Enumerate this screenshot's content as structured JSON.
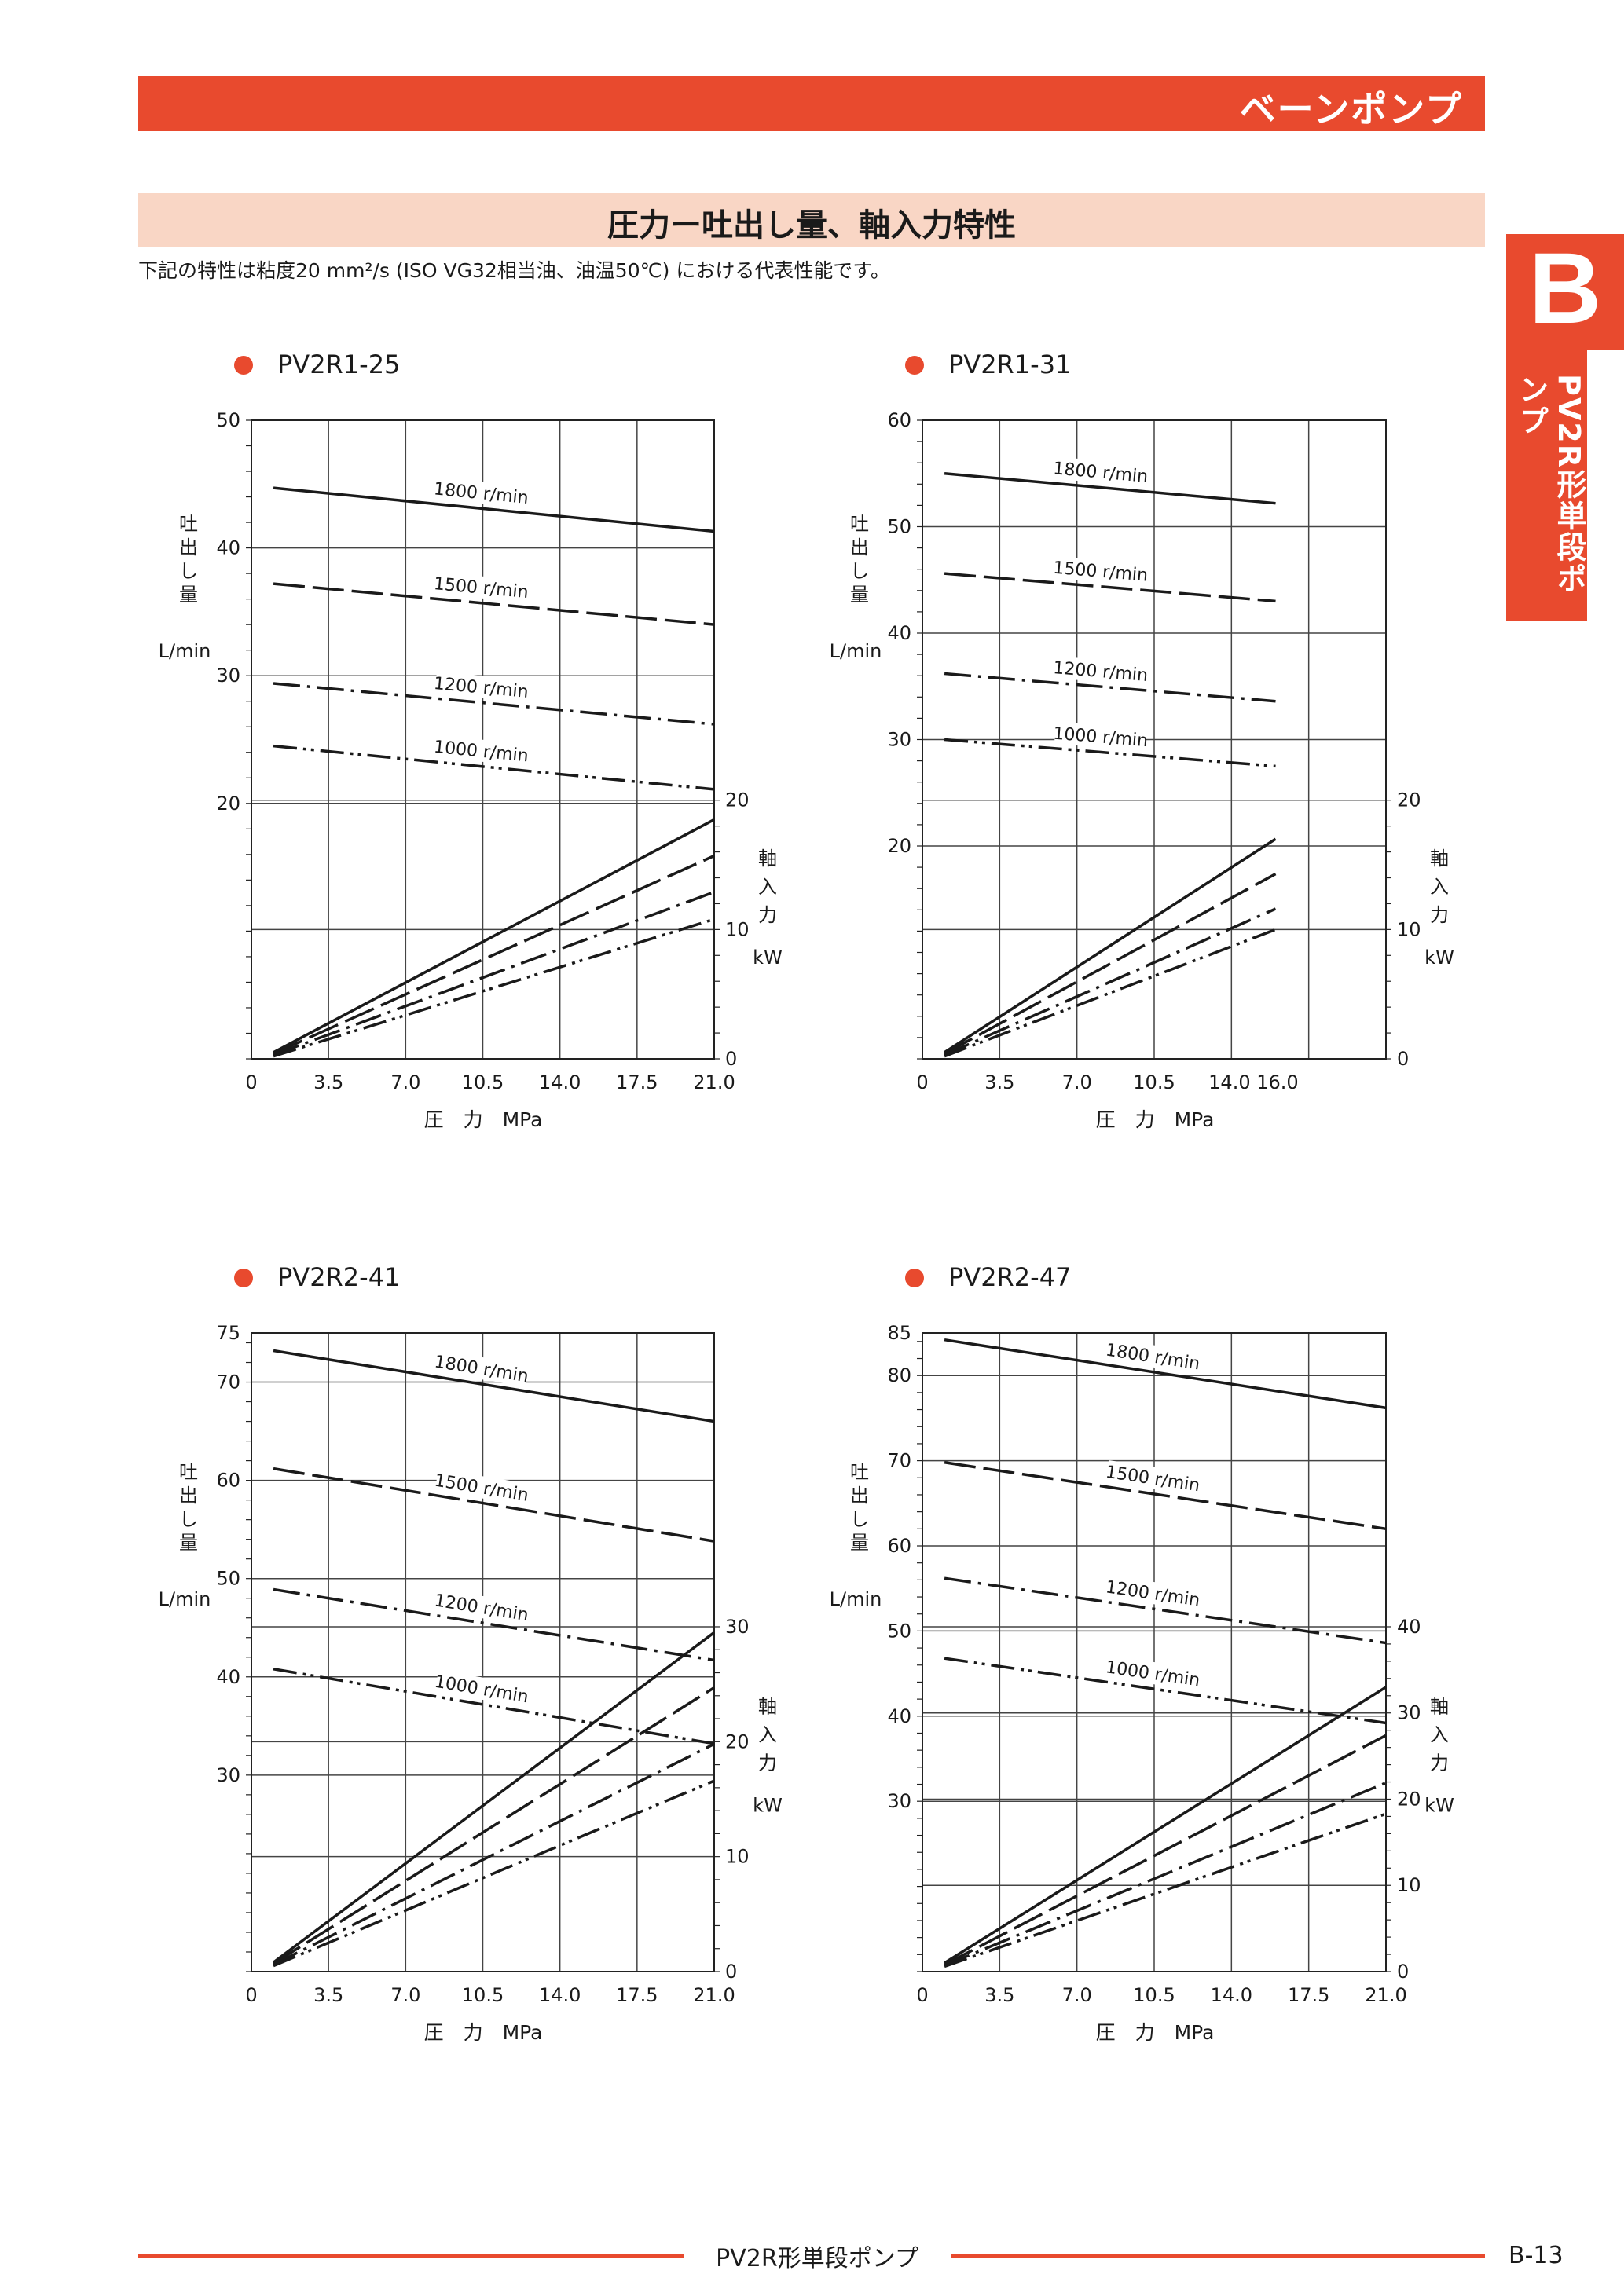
{
  "header": {
    "title": "ベーンポンプ"
  },
  "section": {
    "title": "圧力ー吐出し量、軸入力特性",
    "note": "下記の特性は粘度20 mm²/s (ISO VG32相当油、油温50℃) における代表性能です。"
  },
  "tab": {
    "letter": "B",
    "label": "PV2R形単段ポンプ"
  },
  "footer": {
    "title": "PV2R形単段ポンプ",
    "page": "B-13"
  },
  "chart_data": [
    {
      "type": "line",
      "title": "PV2R1-25",
      "xlabel": "圧　力　MPa",
      "x_ticks": [
        "0",
        "3.5",
        "7.0",
        "10.5",
        "14.0",
        "17.5",
        "21.0"
      ],
      "xlim": [
        0,
        21
      ],
      "ylabel_left": [
        "吐",
        "出",
        "し",
        "量"
      ],
      "ylabel_left_unit": "L/min",
      "ylim_left": [
        0,
        50
      ],
      "y_ticks_left": [
        20,
        30,
        40,
        50
      ],
      "ylabel_right": [
        "軸",
        "入",
        "力"
      ],
      "ylabel_right_unit": "kW",
      "ylim_right": [
        0,
        30
      ],
      "y_ticks_right": [
        0,
        10,
        20
      ],
      "flow_series": [
        {
          "name": "1800 r/min",
          "style": "solid",
          "x": [
            1,
            21
          ],
          "y": [
            44.7,
            41.3
          ]
        },
        {
          "name": "1500 r/min",
          "style": "dash",
          "x": [
            1,
            21
          ],
          "y": [
            37.2,
            34.0
          ]
        },
        {
          "name": "1200 r/min",
          "style": "dashdot",
          "x": [
            1,
            21
          ],
          "y": [
            29.4,
            26.2
          ]
        },
        {
          "name": "1000 r/min",
          "style": "dashdotdot",
          "x": [
            1,
            21
          ],
          "y": [
            24.5,
            21.1
          ]
        }
      ],
      "power_series": [
        {
          "name": "1800 r/min",
          "style": "solid",
          "x": [
            1,
            21
          ],
          "y": [
            0.5,
            18.5
          ]
        },
        {
          "name": "1500 r/min",
          "style": "dash",
          "x": [
            1,
            21
          ],
          "y": [
            0.4,
            15.7
          ]
        },
        {
          "name": "1200 r/min",
          "style": "dashdot",
          "x": [
            1,
            21
          ],
          "y": [
            0.3,
            12.9
          ]
        },
        {
          "name": "1000 r/min",
          "style": "dashdotdot",
          "x": [
            1,
            21
          ],
          "y": [
            0.2,
            10.8
          ]
        }
      ],
      "grid": true
    },
    {
      "type": "line",
      "title": "PV2R1-31",
      "xlabel": "圧　力　MPa",
      "x_ticks": [
        "0",
        "3.5",
        "7.0",
        "10.5",
        "14.0 16.0"
      ],
      "xlim": [
        0,
        21
      ],
      "ylabel_left": [
        "吐",
        "出",
        "し",
        "量"
      ],
      "ylabel_left_unit": "L/min",
      "ylim_left": [
        0,
        60
      ],
      "y_ticks_left": [
        20,
        30,
        40,
        50,
        60
      ],
      "ylabel_right": [
        "軸",
        "入",
        "力"
      ],
      "ylabel_right_unit": "kW",
      "ylim_right": [
        0,
        30
      ],
      "y_ticks_right": [
        0,
        10,
        20
      ],
      "flow_series": [
        {
          "name": "1800 r/min",
          "style": "solid",
          "x": [
            1,
            16
          ],
          "y": [
            55.0,
            52.2
          ]
        },
        {
          "name": "1500 r/min",
          "style": "dash",
          "x": [
            1,
            16
          ],
          "y": [
            45.6,
            43.0
          ]
        },
        {
          "name": "1200 r/min",
          "style": "dashdot",
          "x": [
            1,
            16
          ],
          "y": [
            36.2,
            33.6
          ]
        },
        {
          "name": "1000 r/min",
          "style": "dashdotdot",
          "x": [
            1,
            16
          ],
          "y": [
            30.0,
            27.5
          ]
        }
      ],
      "power_series": [
        {
          "name": "1800 r/min",
          "style": "solid",
          "x": [
            1,
            16
          ],
          "y": [
            0.5,
            17.0
          ]
        },
        {
          "name": "1500 r/min",
          "style": "dash",
          "x": [
            1,
            16
          ],
          "y": [
            0.4,
            14.3
          ]
        },
        {
          "name": "1200 r/min",
          "style": "dashdot",
          "x": [
            1,
            16
          ],
          "y": [
            0.3,
            11.6
          ]
        },
        {
          "name": "1000 r/min",
          "style": "dashdotdot",
          "x": [
            1,
            16
          ],
          "y": [
            0.2,
            10.0
          ]
        }
      ],
      "grid": true
    },
    {
      "type": "line",
      "title": "PV2R2-41",
      "xlabel": "圧　力　MPa",
      "x_ticks": [
        "0",
        "3.5",
        "7.0",
        "10.5",
        "14.0",
        "17.5",
        "21.0"
      ],
      "xlim": [
        0,
        21
      ],
      "ylabel_left": [
        "吐",
        "出",
        "し",
        "量"
      ],
      "ylabel_left_unit": "L/min",
      "ylim_left": [
        10,
        75
      ],
      "y_ticks_left": [
        30,
        40,
        50,
        60,
        70,
        75
      ],
      "ylabel_right": [
        "軸",
        "入",
        "力"
      ],
      "ylabel_right_unit": "kW",
      "ylim_right": [
        0,
        40
      ],
      "y_ticks_right": [
        0,
        10,
        20,
        30
      ],
      "flow_series": [
        {
          "name": "1800 r/min",
          "style": "solid",
          "x": [
            1,
            21
          ],
          "y": [
            73.2,
            66.0
          ]
        },
        {
          "name": "1500 r/min",
          "style": "dash",
          "x": [
            1,
            21
          ],
          "y": [
            61.2,
            53.8
          ]
        },
        {
          "name": "1200 r/min",
          "style": "dashdot",
          "x": [
            1,
            21
          ],
          "y": [
            48.9,
            41.7
          ]
        },
        {
          "name": "1000 r/min",
          "style": "dashdotdot",
          "x": [
            1,
            21
          ],
          "y": [
            40.8,
            33.2
          ]
        }
      ],
      "power_series": [
        {
          "name": "1800 r/min",
          "style": "solid",
          "x": [
            1,
            21
          ],
          "y": [
            0.8,
            29.5
          ]
        },
        {
          "name": "1500 r/min",
          "style": "dash",
          "x": [
            1,
            21
          ],
          "y": [
            0.7,
            24.7
          ]
        },
        {
          "name": "1200 r/min",
          "style": "dashdot",
          "x": [
            1,
            21
          ],
          "y": [
            0.6,
            19.8
          ]
        },
        {
          "name": "1000 r/min",
          "style": "dashdotdot",
          "x": [
            1,
            21
          ],
          "y": [
            0.5,
            16.6
          ]
        }
      ],
      "grid": true
    },
    {
      "type": "line",
      "title": "PV2R2-47",
      "xlabel": "圧　力　MPa",
      "x_ticks": [
        "0",
        "3.5",
        "7.0",
        "10.5",
        "14.0",
        "17.5",
        "21.0"
      ],
      "xlim": [
        0,
        21
      ],
      "ylabel_left": [
        "吐",
        "出",
        "し",
        "量"
      ],
      "ylabel_left_unit": "L/min",
      "ylim_left": [
        10,
        85
      ],
      "y_ticks_left": [
        30,
        40,
        50,
        60,
        70,
        80,
        85
      ],
      "ylabel_right": [
        "軸",
        "入",
        "力"
      ],
      "ylabel_right_unit": "kW",
      "ylim_right": [
        0,
        50
      ],
      "y_ticks_right": [
        0,
        10,
        20,
        30,
        40
      ],
      "flow_series": [
        {
          "name": "1800 r/min",
          "style": "solid",
          "x": [
            1,
            21
          ],
          "y": [
            84.2,
            76.2
          ]
        },
        {
          "name": "1500 r/min",
          "style": "dash",
          "x": [
            1,
            21
          ],
          "y": [
            69.8,
            62.0
          ]
        },
        {
          "name": "1200 r/min",
          "style": "dashdot",
          "x": [
            1,
            21
          ],
          "y": [
            56.2,
            48.6
          ]
        },
        {
          "name": "1000 r/min",
          "style": "dashdotdot",
          "x": [
            1,
            21
          ],
          "y": [
            46.8,
            39.2
          ]
        }
      ],
      "power_series": [
        {
          "name": "1800 r/min",
          "style": "solid",
          "x": [
            1,
            21
          ],
          "y": [
            1.0,
            33.0
          ]
        },
        {
          "name": "1500 r/min",
          "style": "dash",
          "x": [
            1,
            21
          ],
          "y": [
            0.8,
            27.4
          ]
        },
        {
          "name": "1200 r/min",
          "style": "dashdot",
          "x": [
            1,
            21
          ],
          "y": [
            0.7,
            21.9
          ]
        },
        {
          "name": "1000 r/min",
          "style": "dashdotdot",
          "x": [
            1,
            21
          ],
          "y": [
            0.6,
            18.3
          ]
        }
      ],
      "grid": true
    }
  ]
}
